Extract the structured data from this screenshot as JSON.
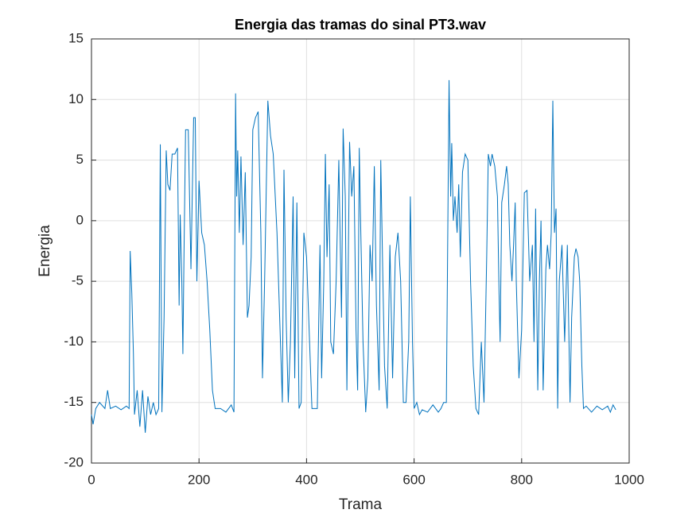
{
  "chart_data": {
    "type": "line",
    "title": "Energia das tramas do sinal PT3.wav",
    "xlabel": "Trama",
    "ylabel": "Energia",
    "color": "#0072bd",
    "grid": true,
    "x": [
      0,
      3,
      8,
      15,
      25,
      30,
      35,
      45,
      55,
      65,
      70,
      72,
      75,
      78,
      80,
      85,
      90,
      95,
      100,
      105,
      110,
      115,
      120,
      125,
      128,
      131,
      135,
      139,
      142,
      146,
      150,
      155,
      160,
      163,
      165,
      168,
      170,
      172,
      175,
      180,
      185,
      190,
      193,
      196,
      200,
      205,
      210,
      215,
      220,
      225,
      230,
      240,
      250,
      260,
      265,
      268,
      270,
      272,
      275,
      278,
      282,
      286,
      290,
      293,
      297,
      300,
      305,
      310,
      315,
      318,
      322,
      328,
      333,
      338,
      345,
      350,
      355,
      358,
      362,
      366,
      370,
      375,
      378,
      382,
      386,
      390,
      395,
      400,
      410,
      420,
      425,
      428,
      432,
      435,
      438,
      442,
      445,
      450,
      455,
      460,
      465,
      468,
      472,
      475,
      480,
      484,
      488,
      492,
      495,
      498,
      500,
      505,
      510,
      514,
      518,
      522,
      526,
      530,
      535,
      538,
      542,
      545,
      550,
      555,
      560,
      565,
      570,
      575,
      580,
      585,
      590,
      593,
      597,
      600,
      605,
      610,
      615,
      625,
      635,
      645,
      650,
      655,
      660,
      665,
      668,
      670,
      673,
      676,
      680,
      683,
      686,
      690,
      695,
      700,
      705,
      710,
      715,
      720,
      725,
      730,
      735,
      738,
      742,
      745,
      750,
      755,
      758,
      760,
      763,
      768,
      772,
      775,
      778,
      782,
      785,
      788,
      790,
      795,
      800,
      805,
      810,
      815,
      820,
      823,
      826,
      830,
      833,
      836,
      840,
      845,
      848,
      852,
      855,
      858,
      861,
      864,
      867,
      870,
      875,
      880,
      885,
      890,
      893,
      895,
      898,
      901,
      905,
      908,
      912,
      915,
      920,
      930,
      940,
      950,
      960,
      965,
      970,
      975
    ],
    "values": [
      -16,
      -16.8,
      -15.5,
      -15,
      -15.5,
      -14,
      -15.5,
      -15.3,
      -15.6,
      -15.3,
      -15.5,
      -2.5,
      -6,
      -11,
      -16,
      -14,
      -17,
      -14,
      -17.5,
      -14.5,
      -16,
      -15,
      -16,
      -15.5,
      6.3,
      -15.8,
      -8,
      5.8,
      3,
      2.5,
      5.5,
      5.5,
      6,
      -7,
      0.5,
      -5,
      -11,
      -3,
      7.5,
      7.5,
      -4,
      8.5,
      8.5,
      -5,
      3.3,
      -1,
      -2,
      -5,
      -9,
      -14,
      -15.5,
      -15.5,
      -15.8,
      -15.2,
      -15.8,
      10.5,
      2,
      5.8,
      -1,
      5.3,
      -2,
      4,
      -8,
      -7,
      -3,
      7.5,
      8.5,
      9,
      -1,
      -13,
      -5,
      9.9,
      7,
      5.5,
      -1,
      -8,
      -15,
      4.2,
      -8,
      -15,
      -10,
      2,
      -13,
      1.5,
      -15.5,
      -15,
      -1,
      -3,
      -15.5,
      -15.5,
      -2,
      -13,
      -5,
      5.5,
      -3,
      3,
      -10,
      -11,
      -5,
      5,
      -8,
      7.6,
      2,
      -14,
      6.5,
      2,
      4.5,
      -9,
      -14,
      6,
      1,
      -10,
      -15.8,
      -13,
      -2,
      -5,
      4.5,
      -7,
      -14,
      5,
      -5,
      -12,
      -15.5,
      -2,
      -13,
      -3,
      -1,
      -5,
      -15,
      -15,
      -10,
      2,
      -10,
      -15.5,
      -15,
      -16,
      -15.6,
      -15.8,
      -15.2,
      -15.8,
      -15.5,
      -15,
      -15,
      11.6,
      2,
      6.4,
      0,
      2,
      -1,
      3,
      -3,
      4,
      5.5,
      5,
      -5,
      -12,
      -15.5,
      -16,
      -10,
      -15,
      -3,
      5.5,
      4.5,
      5.5,
      4.5,
      2,
      -6,
      -10,
      1.5,
      3,
      4.5,
      3,
      -2,
      -5,
      -2,
      1.5,
      -5,
      -13,
      -9,
      2.3,
      2.5,
      -5,
      -2,
      -10,
      1,
      -14,
      -5,
      0,
      -14,
      -4,
      -2,
      -4,
      -1,
      9.9,
      -1,
      1,
      -15.5,
      -5,
      -2,
      -10,
      -2,
      -15,
      -8,
      -6,
      -3,
      -2.3,
      -3,
      -5,
      -12,
      -15.5,
      -15.3,
      -15.8,
      -15.3,
      -15.6,
      -15.3,
      -15.8,
      -15.2,
      -15.6
    ],
    "xlim": [
      0,
      1000
    ],
    "xticks": [
      0,
      200,
      400,
      600,
      800,
      1000
    ],
    "ylim": [
      -20,
      15
    ],
    "yticks": [
      -20,
      -15,
      -10,
      -5,
      0,
      5,
      10,
      15
    ]
  }
}
